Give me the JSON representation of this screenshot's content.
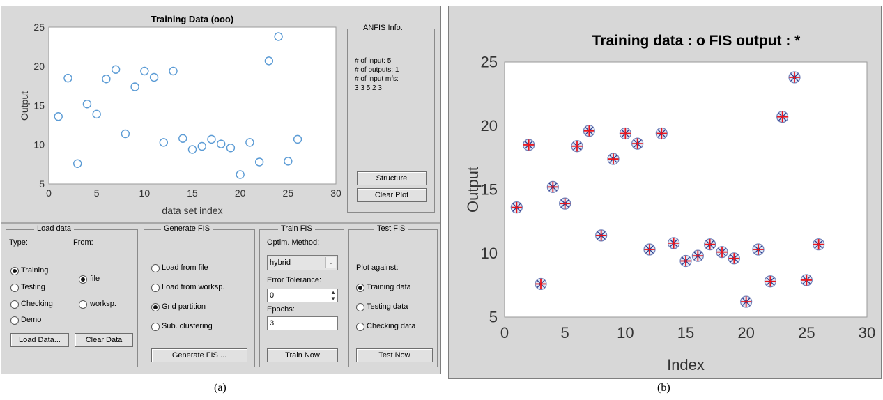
{
  "panel_a": {
    "chart_title": "Training Data (ooo)",
    "anfis_info": {
      "title": "ANFIS Info.",
      "lines": [
        "# of input: 5",
        "# of outputs: 1",
        "# of input mfs:",
        "3  3  5  2  3"
      ],
      "structure_button": "Structure",
      "clear_plot_button": "Clear Plot"
    },
    "load_data": {
      "title": "Load data",
      "type_label": "Type:",
      "from_label": "From:",
      "types": [
        "Training",
        "Testing",
        "Checking",
        "Demo"
      ],
      "selected_type": "Training",
      "sources": [
        "file",
        "worksp."
      ],
      "selected_source": "file",
      "load_button": "Load Data...",
      "clear_button": "Clear Data"
    },
    "generate_fis": {
      "title": "Generate FIS",
      "options": [
        "Load from file",
        "Load from worksp.",
        "Grid partition",
        "Sub. clustering"
      ],
      "selected": "Grid partition",
      "button": "Generate FIS ..."
    },
    "train_fis": {
      "title": "Train FIS",
      "method_label": "Optim. Method:",
      "method_value": "hybrid",
      "tolerance_label": "Error Tolerance:",
      "tolerance_value": "0",
      "epochs_label": "Epochs:",
      "epochs_value": "3",
      "button": "Train Now"
    },
    "test_fis": {
      "title": "Test FIS",
      "plot_against_label": "Plot against:",
      "options": [
        "Training data",
        "Testing data",
        "Checking data"
      ],
      "selected": "Training data",
      "button": "Test Now"
    }
  },
  "panel_b": {
    "chart_title": "Training data : o   FIS output : *"
  },
  "captions": {
    "a": "(a)",
    "b": "(b)"
  },
  "colors": {
    "panel_bg": "#d9d9d9",
    "marker_blue": "#5b9bd5",
    "marker_red": "#e8141c",
    "marker_navy": "#2a3a8c"
  },
  "chart_data": [
    {
      "type": "scatter",
      "title": "Training Data (ooo)",
      "xlabel": "data set index",
      "ylabel": "Output",
      "xlim": [
        0,
        30
      ],
      "ylim": [
        5,
        25
      ],
      "xticks": [
        0,
        5,
        10,
        15,
        20,
        25,
        30
      ],
      "yticks": [
        5,
        10,
        15,
        20,
        25
      ],
      "grid": false,
      "series": [
        {
          "marker": "o",
          "x": [
            1,
            2,
            3,
            4,
            5,
            6,
            7,
            8,
            9,
            10,
            11,
            12,
            13,
            14,
            15,
            16,
            17,
            18,
            19,
            20,
            21,
            22,
            23,
            24,
            25,
            26
          ],
          "y": [
            13.6,
            18.5,
            7.6,
            15.2,
            13.9,
            18.4,
            19.6,
            11.4,
            17.4,
            19.4,
            18.6,
            10.3,
            19.4,
            10.8,
            9.4,
            9.8,
            10.7,
            10.1,
            9.6,
            6.2,
            10.3,
            7.8,
            20.7,
            23.8,
            7.9,
            10.7
          ]
        }
      ]
    },
    {
      "type": "scatter",
      "title": "Training data : o   FIS output : *",
      "xlabel": "Index",
      "ylabel": "Output",
      "xlim": [
        0,
        30
      ],
      "ylim": [
        5,
        25
      ],
      "xticks": [
        0,
        5,
        10,
        15,
        20,
        25,
        30
      ],
      "yticks": [
        5,
        10,
        15,
        20,
        25
      ],
      "grid": false,
      "series": [
        {
          "marker": "o",
          "x": [
            1,
            2,
            3,
            4,
            5,
            6,
            7,
            8,
            9,
            10,
            11,
            12,
            13,
            14,
            15,
            16,
            17,
            18,
            19,
            20,
            21,
            22,
            23,
            24,
            25,
            26
          ],
          "y": [
            13.6,
            18.5,
            7.6,
            15.2,
            13.9,
            18.4,
            19.6,
            11.4,
            17.4,
            19.4,
            18.6,
            10.3,
            19.4,
            10.8,
            9.4,
            9.8,
            10.7,
            10.1,
            9.6,
            6.2,
            10.3,
            7.8,
            20.7,
            23.8,
            7.9,
            10.7
          ]
        },
        {
          "marker": "*",
          "x": [
            1,
            2,
            3,
            4,
            5,
            6,
            7,
            8,
            9,
            10,
            11,
            12,
            13,
            14,
            15,
            16,
            17,
            18,
            19,
            20,
            21,
            22,
            23,
            24,
            25,
            26
          ],
          "y": [
            13.6,
            18.5,
            7.6,
            15.2,
            13.9,
            18.4,
            19.6,
            11.4,
            17.4,
            19.4,
            18.6,
            10.3,
            19.4,
            10.8,
            9.4,
            9.8,
            10.7,
            10.1,
            9.6,
            6.2,
            10.3,
            7.8,
            20.7,
            23.8,
            7.9,
            10.7
          ]
        }
      ]
    }
  ]
}
